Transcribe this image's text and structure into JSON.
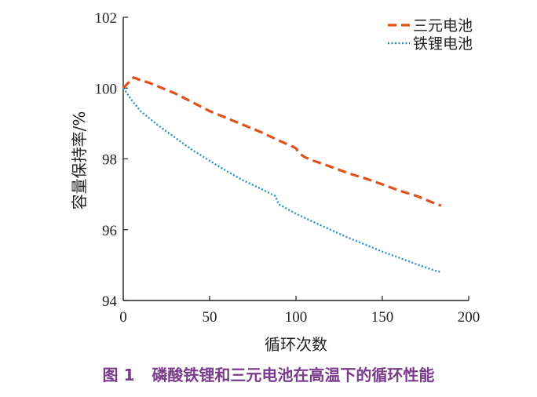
{
  "caption": {
    "number": "图 1",
    "text": "磷酸铁锂和三元电池在高温下的循环性能",
    "color": "#7a3b8c"
  },
  "chart_data": {
    "type": "line",
    "title": "",
    "xlabel": "循环次数",
    "ylabel": "容量保持率/%",
    "xlim": [
      0,
      200
    ],
    "ylim": [
      94,
      102
    ],
    "xticks": [
      0,
      50,
      100,
      150,
      200
    ],
    "yticks": [
      94,
      96,
      98,
      100,
      102
    ],
    "grid": false,
    "legend_position": "top-right",
    "series": [
      {
        "name": "三元电池",
        "color": "#e0501a",
        "style": "dashed",
        "x": [
          0,
          2,
          4,
          6,
          10,
          15,
          20,
          30,
          40,
          50,
          60,
          70,
          80,
          90,
          98,
          100,
          101,
          103,
          105,
          110,
          120,
          130,
          140,
          150,
          160,
          170,
          180,
          184
        ],
        "y": [
          100.0,
          100.1,
          100.2,
          100.3,
          100.22,
          100.15,
          100.05,
          99.85,
          99.6,
          99.35,
          99.15,
          98.95,
          98.75,
          98.52,
          98.35,
          98.3,
          98.22,
          98.12,
          98.05,
          97.95,
          97.78,
          97.6,
          97.45,
          97.28,
          97.1,
          96.95,
          96.75,
          96.68
        ]
      },
      {
        "name": "铁锂电池",
        "color": "#2b8fd0",
        "style": "dotted",
        "x": [
          0,
          5,
          10,
          20,
          30,
          40,
          50,
          60,
          70,
          80,
          88,
          90,
          100,
          110,
          120,
          130,
          140,
          150,
          160,
          170,
          180,
          184
        ],
        "y": [
          100.0,
          99.65,
          99.35,
          98.95,
          98.6,
          98.25,
          97.95,
          97.65,
          97.38,
          97.15,
          96.95,
          96.72,
          96.45,
          96.22,
          96.0,
          95.78,
          95.58,
          95.38,
          95.2,
          95.02,
          94.85,
          94.8
        ]
      }
    ]
  }
}
